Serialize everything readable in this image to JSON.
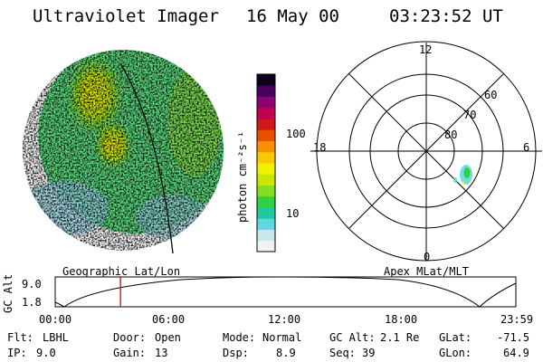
{
  "header": {
    "instrument": "Ultraviolet Imager",
    "date": "16 May 00",
    "time": "03:23:52 UT"
  },
  "colorbar": {
    "unit_label": "photon cm⁻²s⁻¹",
    "ticks": [
      "100",
      "10"
    ],
    "colors": [
      "#f2f2f2",
      "#c8e8f0",
      "#5fd8e0",
      "#20c8a0",
      "#30d040",
      "#80e020",
      "#c8e800",
      "#f0f000",
      "#f8c800",
      "#f89000",
      "#e85000",
      "#d01818",
      "#c00050",
      "#900070",
      "#4a0060",
      "#100020"
    ]
  },
  "polar": {
    "mlt_labels": {
      "top": "12",
      "left": "18",
      "right": "6",
      "bottom": "0"
    },
    "lat_labels": [
      "60",
      "70",
      "80"
    ]
  },
  "orbit": {
    "y_label": "GC Alt",
    "y_ticks": [
      "9.0",
      "1.8"
    ],
    "left_title": "Geographic Lat/Lon",
    "right_title": "Apex MLat/MLT",
    "x_ticks": [
      "00:00",
      "06:00",
      "12:00",
      "18:00",
      "23:59"
    ],
    "current_time_hours": 3.4
  },
  "status": {
    "row1": [
      {
        "label": "Flt:",
        "value": "LBHL"
      },
      {
        "label": "Door:",
        "value": "Open"
      },
      {
        "label": "Mode:",
        "value": "Normal"
      },
      {
        "label": "GC Alt:",
        "value": "2.1 Re"
      },
      {
        "label": "GLat:",
        "value": "-71.5"
      }
    ],
    "row2": [
      {
        "label": "IP:",
        "value": "9.0"
      },
      {
        "label": "Gain:",
        "value": "13"
      },
      {
        "label": "Dsp:",
        "value": "8.9"
      },
      {
        "label": "Seq:",
        "value": "39"
      },
      {
        "label": "GLon:",
        "value": "64.9"
      }
    ]
  }
}
